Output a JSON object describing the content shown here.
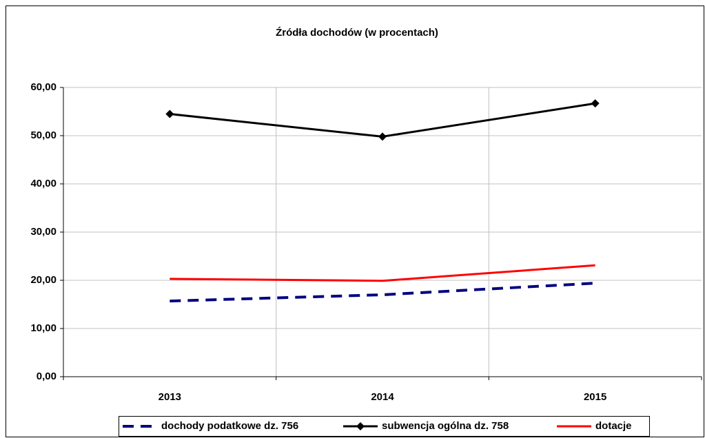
{
  "chart_data": {
    "type": "line",
    "title": "Źródła dochodów (w procentach)",
    "categories": [
      "2013",
      "2014",
      "2015"
    ],
    "series": [
      {
        "name": "dochody podatkowe dz. 756",
        "color": "#000080",
        "values": [
          15.7,
          17.0,
          19.4
        ]
      },
      {
        "name": "subwencja ogólna dz. 758",
        "color": "#000000",
        "values": [
          54.5,
          49.8,
          56.7
        ]
      },
      {
        "name": "dotacje",
        "color": "#ff0000",
        "values": [
          20.3,
          19.9,
          23.1
        ]
      }
    ],
    "ylim": [
      0,
      60
    ],
    "yticks": [
      {
        "value": 0,
        "label": "0,00"
      },
      {
        "value": 10,
        "label": "10,00"
      },
      {
        "value": 20,
        "label": "20,00"
      },
      {
        "value": 30,
        "label": "30,00"
      },
      {
        "value": 40,
        "label": "40,00"
      },
      {
        "value": 50,
        "label": "50,00"
      },
      {
        "value": 60,
        "label": "60,00"
      }
    ],
    "grid": true,
    "legend": "bottom"
  }
}
